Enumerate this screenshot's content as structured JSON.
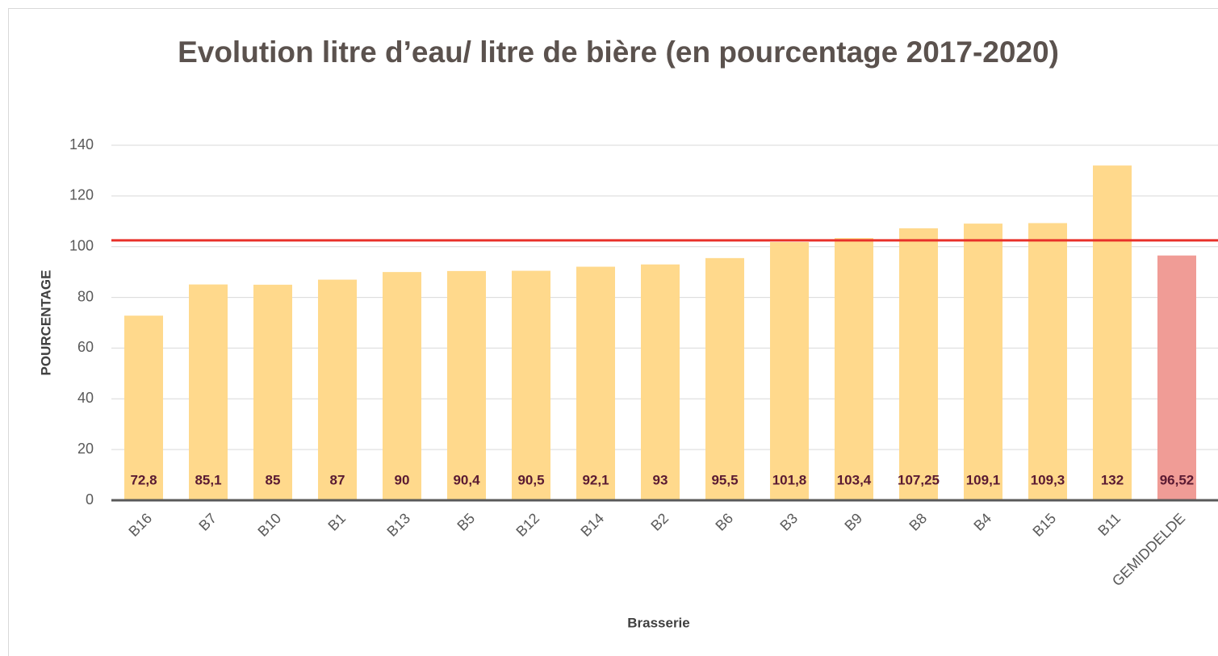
{
  "chart_data": {
    "type": "bar",
    "title": "Evolution litre d’eau/ litre de bière (en pourcentage 2017-2020)",
    "x_label": "Brasserie",
    "y_label": "POURCENTAGE",
    "categories": [
      "B16",
      "B7",
      "B10",
      "B1",
      "B13",
      "B5",
      "B12",
      "B14",
      "B2",
      "B6",
      "B3",
      "B9",
      "B8",
      "B4",
      "B15",
      "B11",
      "GEMIDDELDE"
    ],
    "values": [
      72.8,
      85.1,
      85,
      87,
      90,
      90.4,
      90.5,
      92.1,
      93,
      95.5,
      101.8,
      103.4,
      107.25,
      109.1,
      109.3,
      132,
      96.52
    ],
    "value_labels": [
      "72,8",
      "85,1",
      "85",
      "87",
      "90",
      "90,4",
      "90,5",
      "92,1",
      "93",
      "95,5",
      "101,8",
      "103,4",
      "107,25",
      "109,1",
      "109,3",
      "132",
      "96,52"
    ],
    "colors": [
      "#ffd98c",
      "#ffd98c",
      "#ffd98c",
      "#ffd98c",
      "#ffd98c",
      "#ffd98c",
      "#ffd98c",
      "#ffd98c",
      "#ffd98c",
      "#ffd98c",
      "#ffd98c",
      "#ffd98c",
      "#ffd98c",
      "#ffd98c",
      "#ffd98c",
      "#ffd98c",
      "#f09c96"
    ],
    "reference_line": 102.5,
    "reference_color": "#e8302a",
    "ylim": [
      0,
      140
    ],
    "yticks": [
      0,
      20,
      40,
      60,
      80,
      100,
      120,
      140
    ],
    "grid": true
  }
}
